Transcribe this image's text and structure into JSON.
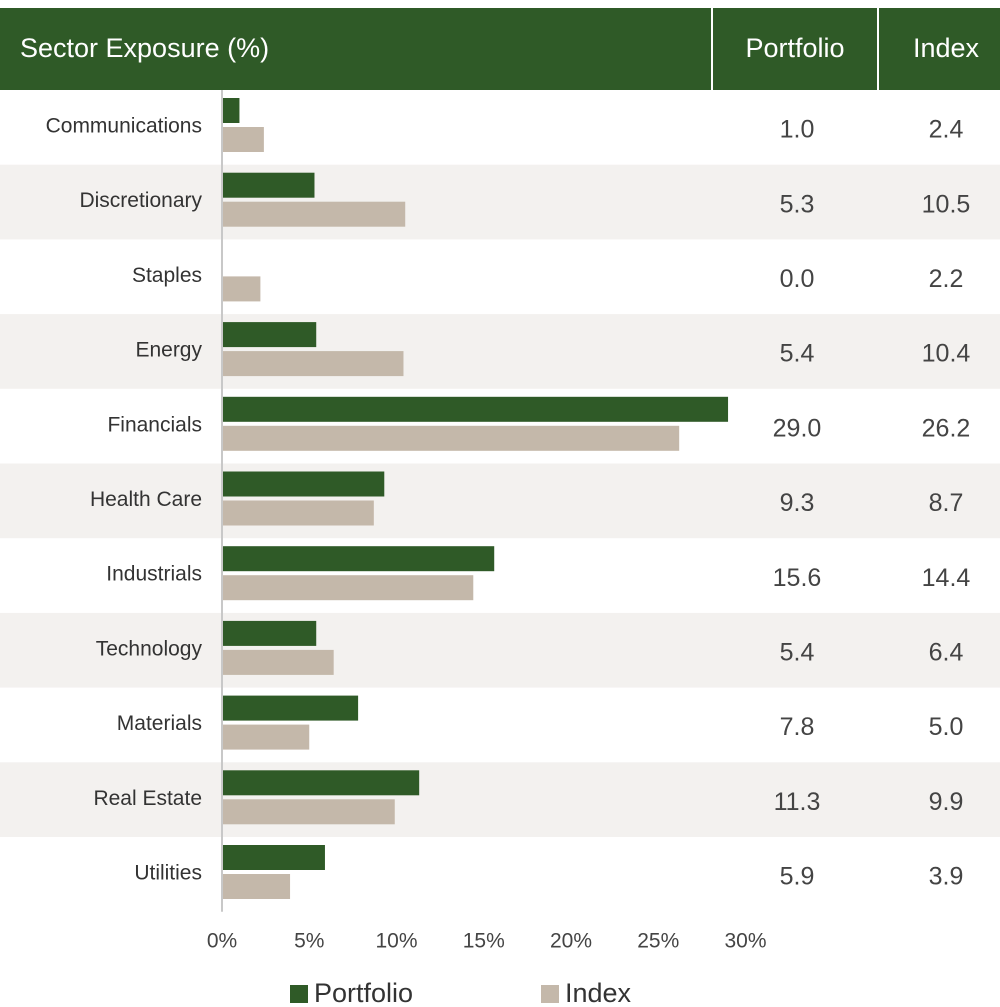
{
  "chart_data": {
    "type": "bar",
    "orientation": "horizontal",
    "title": "Sector Exposure (%)",
    "categories": [
      "Communications",
      "Discretionary",
      "Staples",
      "Energy",
      "Financials",
      "Health Care",
      "Industrials",
      "Technology",
      "Materials",
      "Real Estate",
      "Utilities"
    ],
    "series": [
      {
        "name": "Portfolio",
        "color": "#2f5a27",
        "values": [
          1.0,
          5.3,
          0.0,
          5.4,
          29.0,
          9.3,
          15.6,
          5.4,
          7.8,
          11.3,
          5.9
        ],
        "value_labels": [
          "1.0",
          "5.3",
          "0.0",
          "5.4",
          "29.0",
          "9.3",
          "15.6",
          "5.4",
          "7.8",
          "11.3",
          "5.9"
        ]
      },
      {
        "name": "Index",
        "color": "#c4b8aa",
        "values": [
          2.4,
          10.5,
          2.2,
          10.4,
          26.2,
          8.7,
          14.4,
          6.4,
          5.0,
          9.9,
          3.9
        ],
        "value_labels": [
          "2.4",
          "10.5",
          "2.2",
          "10.4",
          "26.2",
          "8.7",
          "14.4",
          "6.4",
          "5.0",
          "9.9",
          "3.9"
        ]
      }
    ],
    "xlim": [
      0,
      30
    ],
    "xticks": [
      {
        "value": 0,
        "label": "0%"
      },
      {
        "value": 5,
        "label": "5%"
      },
      {
        "value": 10,
        "label": "10%"
      },
      {
        "value": 15,
        "label": "15%"
      },
      {
        "value": 20,
        "label": "20%"
      },
      {
        "value": 25,
        "label": "25%"
      },
      {
        "value": 30,
        "label": "30%"
      }
    ],
    "legend": "bottom"
  }
}
